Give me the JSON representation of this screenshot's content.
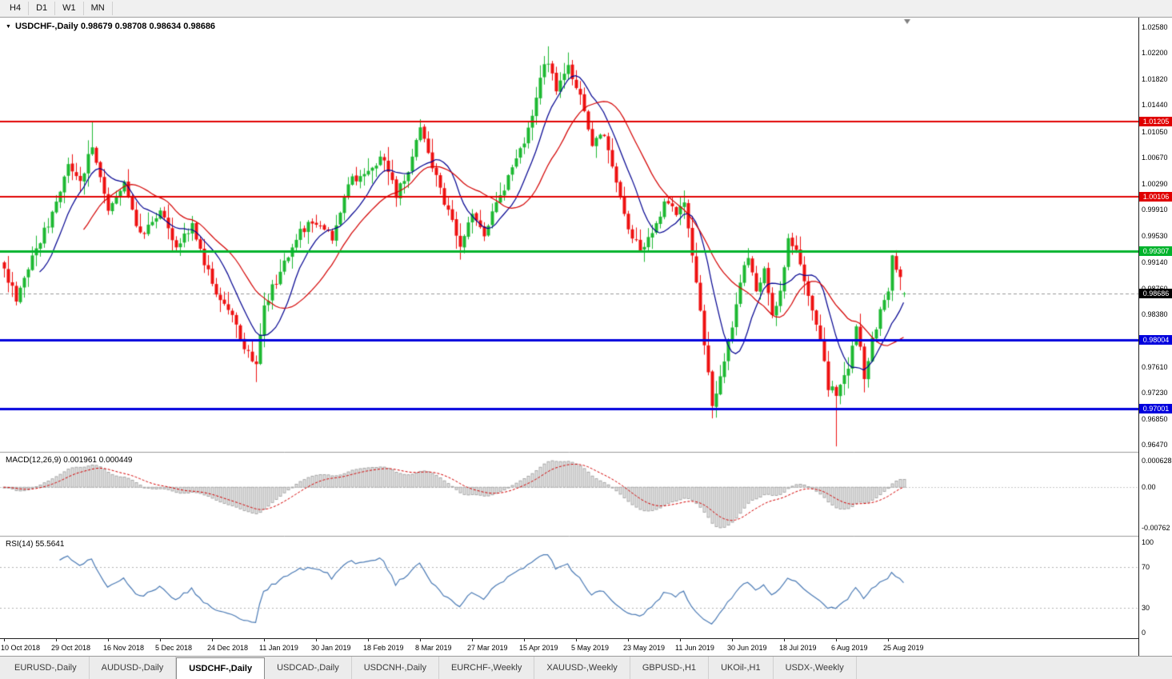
{
  "toolbar": {
    "timeframes": [
      "H4",
      "D1",
      "W1",
      "MN"
    ]
  },
  "tabs": {
    "items": [
      {
        "label": "EURUSD-,Daily",
        "active": false
      },
      {
        "label": "AUDUSD-,Daily",
        "active": false
      },
      {
        "label": "USDCHF-,Daily",
        "active": true
      },
      {
        "label": "USDCAD-,Daily",
        "active": false
      },
      {
        "label": "USDCNH-,Daily",
        "active": false
      },
      {
        "label": "EURCHF-,Weekly",
        "active": false
      },
      {
        "label": "XAUUSD-,Weekly",
        "active": false
      },
      {
        "label": "GBPUSD-,H1",
        "active": false
      },
      {
        "label": "UKOil-,H1",
        "active": false
      },
      {
        "label": "USDX-,Weekly",
        "active": false
      }
    ]
  },
  "chart_data": {
    "type": "candlestick",
    "symbol": "USDCHF-",
    "timeframe": "Daily",
    "main_title": "USDCHF-,Daily 0.98679 0.98708 0.98634 0.98686",
    "ohlc": {
      "open": "0.98679",
      "high": "0.98708",
      "low": "0.98634",
      "close": "0.98686"
    },
    "current_price": 0.98686,
    "current_price_label": "0.98686",
    "price_range": {
      "top": 1.0272,
      "bottom": 0.9637
    },
    "price_axis_labels": [
      "1.02580",
      "1.02200",
      "1.01820",
      "1.01440",
      "1.01050",
      "1.00670",
      "1.00290",
      "0.99910",
      "0.99530",
      "0.99140",
      "0.98760",
      "0.98380",
      "0.97610",
      "0.97230",
      "0.96850",
      "0.96470"
    ],
    "hlines": [
      {
        "price": 1.01205,
        "label": "1.01205",
        "color": "#e00000",
        "width": 2,
        "role": "resistance"
      },
      {
        "price": 1.00106,
        "label": "1.00106",
        "color": "#e00000",
        "width": 2,
        "role": "resistance"
      },
      {
        "price": 0.99307,
        "label": "0.99307",
        "color": "#00b32c",
        "width": 3,
        "role": "pivot"
      },
      {
        "price": 0.98004,
        "label": "0.98004",
        "color": "#0000dd",
        "width": 3,
        "role": "support"
      },
      {
        "price": 0.97001,
        "label": "0.97001",
        "color": "#0000dd",
        "width": 3,
        "role": "support"
      }
    ],
    "x_labels": [
      "10 Oct 2018",
      "29 Oct 2018",
      "16 Nov 2018",
      "5 Dec 2018",
      "24 Dec 2018",
      "11 Jan 2019",
      "30 Jan 2019",
      "18 Feb 2019",
      "8 Mar 2019",
      "27 Mar 2019",
      "15 Apr 2019",
      "5 May 2019",
      "23 May 2019",
      "11 Jun 2019",
      "30 Jun 2019",
      "18 Jul 2019",
      "6 Aug 2019",
      "25 Aug 2019"
    ],
    "candles_per_label": 13,
    "num_candles": 226,
    "seed": 90210,
    "waypoints": [
      [
        0,
        0.9905
      ],
      [
        3,
        0.9858
      ],
      [
        8,
        0.9932
      ],
      [
        13,
        1.0
      ],
      [
        16,
        1.0062
      ],
      [
        19,
        1.0028
      ],
      [
        22,
        1.009
      ],
      [
        26,
        0.999
      ],
      [
        30,
        1.003
      ],
      [
        34,
        0.9952
      ],
      [
        39,
        0.9992
      ],
      [
        43,
        0.9933
      ],
      [
        47,
        0.9968
      ],
      [
        52,
        0.9882
      ],
      [
        56,
        0.9845
      ],
      [
        60,
        0.9792
      ],
      [
        63,
        0.9757
      ],
      [
        65,
        0.9852
      ],
      [
        70,
        0.9915
      ],
      [
        74,
        0.9958
      ],
      [
        78,
        0.9975
      ],
      [
        82,
        0.9945
      ],
      [
        86,
        1.0028
      ],
      [
        91,
        1.0045
      ],
      [
        95,
        1.0068
      ],
      [
        98,
        1.0012
      ],
      [
        101,
        1.0045
      ],
      [
        104,
        1.0112
      ],
      [
        107,
        1.0052
      ],
      [
        111,
        0.9988
      ],
      [
        114,
        0.9938
      ],
      [
        117,
        0.9985
      ],
      [
        120,
        0.9952
      ],
      [
        124,
        1.0012
      ],
      [
        128,
        1.0062
      ],
      [
        131,
        1.0105
      ],
      [
        134,
        1.018
      ],
      [
        136,
        1.0212
      ],
      [
        138,
        1.0162
      ],
      [
        141,
        1.0198
      ],
      [
        144,
        1.0152
      ],
      [
        147,
        1.0088
      ],
      [
        150,
        1.0102
      ],
      [
        153,
        1.0032
      ],
      [
        156,
        0.9962
      ],
      [
        159,
        0.9932
      ],
      [
        162,
        0.9958
      ],
      [
        165,
        1.0002
      ],
      [
        168,
        0.9988
      ],
      [
        170,
        0.9998
      ],
      [
        172,
        0.9925
      ],
      [
        174,
        0.984
      ],
      [
        176,
        0.9752
      ],
      [
        177,
        0.9706
      ],
      [
        179,
        0.9748
      ],
      [
        182,
        0.9822
      ],
      [
        184,
        0.9888
      ],
      [
        186,
        0.9922
      ],
      [
        188,
        0.9872
      ],
      [
        190,
        0.9902
      ],
      [
        192,
        0.9838
      ],
      [
        194,
        0.9872
      ],
      [
        196,
        0.9948
      ],
      [
        198,
        0.9925
      ],
      [
        200,
        0.9888
      ],
      [
        202,
        0.9842
      ],
      [
        204,
        0.9806
      ],
      [
        206,
        0.9728
      ],
      [
        208,
        0.9722
      ],
      [
        211,
        0.9762
      ],
      [
        213,
        0.9822
      ],
      [
        215,
        0.9748
      ],
      [
        217,
        0.9802
      ],
      [
        219,
        0.9842
      ],
      [
        221,
        0.9872
      ],
      [
        222,
        0.9918
      ],
      [
        224,
        0.9888
      ],
      [
        225,
        0.98686
      ]
    ],
    "overrides": {
      "22": {
        "high": 1.0121
      },
      "63": {
        "low": 0.9739
      },
      "104": {
        "high": 1.01235
      },
      "136": {
        "high": 1.023
      },
      "141": {
        "high": 1.0221
      },
      "177": {
        "low": 0.9686
      },
      "186": {
        "high": 0.9935
      },
      "196": {
        "high": 0.9956
      },
      "208": {
        "low": 0.9645
      },
      "215": {
        "low": 0.9724
      },
      "222": {
        "high": 0.9925
      },
      "225": {
        "open": 0.98679,
        "high": 0.98708,
        "low": 0.98634,
        "close": 0.98686
      }
    },
    "moving_averages": [
      {
        "period": 10,
        "color": "#000090",
        "name": "ma-fast"
      },
      {
        "period": 21,
        "color": "#d40000",
        "name": "ma-slow"
      }
    ],
    "indicators": {
      "macd": {
        "title": "MACD(12,26,9) 0.001961 0.000449",
        "fast": 12,
        "slow": 26,
        "signal": 9,
        "axis_labels": [
          "0.0006286",
          "0.00",
          "-0.00762"
        ],
        "hist_fill": "#e4e4e4",
        "hist_stroke": "#9a9a9a",
        "signal_color": "#d40000"
      },
      "rsi": {
        "title": "RSI(14) 55.5641",
        "period": 14,
        "axis_labels": [
          "100",
          "70",
          "30",
          "0"
        ],
        "levels": [
          70,
          30
        ],
        "line_color": "#4a7ab5"
      }
    },
    "colors": {
      "bull": "#1db932",
      "bear": "#ee1111",
      "background": "#ffffff",
      "current_price_line": "#9a9a9a"
    }
  }
}
